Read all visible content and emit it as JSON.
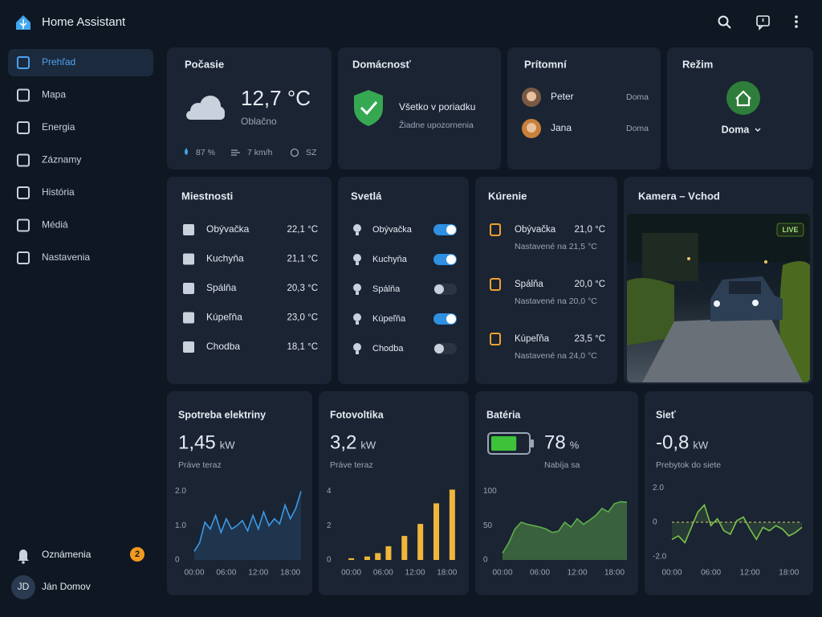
{
  "app": {
    "title": "Home Assistant"
  },
  "sidebar": {
    "items": [
      "Prehľad",
      "Mapa",
      "Energia",
      "Záznamy",
      "História",
      "Médiá",
      "Nastavenia"
    ],
    "active": 0,
    "notifications": {
      "label": "Oznámenia",
      "count": 2
    },
    "user": {
      "initials": "JD",
      "name": "Ján Domov"
    }
  },
  "weather": {
    "title": "Počasie",
    "temperature": "12,7 °C",
    "condition": "Oblačno",
    "humidity": "87 %",
    "wind": "7 km/h",
    "direction": "SZ"
  },
  "household": {
    "title": "Domácnosť",
    "status": "Všetko v poriadku",
    "detail": "Žiadne upozornenia"
  },
  "presence": {
    "title": "Prítomní",
    "people": [
      {
        "name": "Peter",
        "state": "Doma"
      },
      {
        "name": "Jana",
        "state": "Doma"
      }
    ]
  },
  "mode": {
    "title": "Režim",
    "value": "Doma"
  },
  "rooms": {
    "title": "Miestnosti",
    "rows": [
      {
        "name": "Obývačka",
        "temperature": "22,1 °C"
      },
      {
        "name": "Kuchyňa",
        "temperature": "21,1 °C"
      },
      {
        "name": "Spálňa",
        "temperature": "20,3 °C"
      },
      {
        "name": "Kúpeľňa",
        "temperature": "23,0 °C"
      },
      {
        "name": "Chodba",
        "temperature": "18,1 °C"
      }
    ]
  },
  "lights": {
    "title": "Svetlá",
    "on_color": "#2f8fe0",
    "items": [
      {
        "name": "Obývačka",
        "on": true
      },
      {
        "name": "Kuchyňa",
        "on": true
      },
      {
        "name": "Spálňa",
        "on": false
      },
      {
        "name": "Kúpeľňa",
        "on": true
      },
      {
        "name": "Chodba",
        "on": false
      }
    ]
  },
  "heating": {
    "title": "Kúrenie",
    "zones": [
      {
        "name": "Obývačka",
        "current": "21,0 °C",
        "target": "Nastavené na 21,5 °C"
      },
      {
        "name": "Spálňa",
        "current": "20,0 °C",
        "target": "Nastavené na 20,0 °C"
      },
      {
        "name": "Kúpeľňa",
        "current": "23,5 °C",
        "target": "Nastavené na 24,0 °C"
      }
    ]
  },
  "camera": {
    "title": "Kamera – Vchod",
    "badge": "LIVE"
  },
  "chart_data": [
    {
      "type": "line",
      "title": "Spotreba elektriny",
      "value": "1,45",
      "unit": "kW",
      "caption": "Práve teraz",
      "color": "#3b9ae8",
      "x": [
        0,
        1,
        2,
        3,
        4,
        5,
        6,
        7,
        8,
        9,
        10,
        11,
        12,
        13,
        14,
        15,
        16,
        17,
        18,
        19,
        20
      ],
      "values": [
        0.25,
        0.5,
        1.1,
        0.9,
        1.3,
        0.8,
        1.2,
        0.9,
        1.0,
        1.15,
        0.85,
        1.3,
        0.9,
        1.4,
        1.0,
        1.2,
        1.05,
        1.6,
        1.2,
        1.5,
        2.0
      ],
      "xlim": [
        0,
        20
      ],
      "xticks": [
        {
          "value": 0,
          "label": "00:00"
        },
        {
          "value": 6,
          "label": "06:00"
        },
        {
          "value": 12,
          "label": "12:00"
        },
        {
          "value": 18,
          "label": "18:00"
        }
      ],
      "ylim": [
        0,
        2.2
      ],
      "yticks": [
        0,
        {
          "value": 1,
          "label": "1.0"
        },
        {
          "value": 2,
          "label": "2.0"
        }
      ]
    },
    {
      "type": "bar",
      "title": "Fotovoltika",
      "value": "3,2",
      "unit": "kW",
      "caption": "Práve teraz",
      "color": "#f0b63a",
      "x": [
        0,
        3,
        5,
        7,
        10,
        13,
        16,
        19
      ],
      "values": [
        0.1,
        0.2,
        0.4,
        0.8,
        1.4,
        2.1,
        3.3,
        4.1
      ],
      "xlim": [
        -1,
        20
      ],
      "xticks": [
        {
          "value": 0,
          "label": "00:00"
        },
        {
          "value": 6,
          "label": "06:00"
        },
        {
          "value": 12,
          "label": "12:00"
        },
        {
          "value": 18,
          "label": "18:00"
        }
      ],
      "ylim": [
        0,
        4.4
      ],
      "yticks": [
        0,
        2,
        4
      ]
    },
    {
      "type": "area",
      "title": "Batéria",
      "value": 78,
      "unit": "%",
      "caption": "Nabíja sa",
      "color": "#5fae4a",
      "x": [
        0,
        1,
        2,
        3,
        4,
        5,
        6,
        7,
        8,
        9,
        10,
        11,
        12,
        13,
        14,
        15,
        16,
        17,
        18,
        19,
        20
      ],
      "values": [
        10,
        25,
        45,
        55,
        52,
        50,
        48,
        45,
        40,
        42,
        55,
        48,
        60,
        52,
        58,
        65,
        75,
        70,
        82,
        85,
        84
      ],
      "xlim": [
        0,
        20
      ],
      "xticks": [
        {
          "value": 0,
          "label": "00:00"
        },
        {
          "value": 6,
          "label": "06:00"
        },
        {
          "value": 12,
          "label": "12:00"
        },
        {
          "value": 18,
          "label": "18:00"
        }
      ],
      "ylim": [
        0,
        110
      ],
      "yticks": [
        0,
        50,
        100
      ]
    },
    {
      "type": "line",
      "title": "Sieť",
      "value": "-0,8",
      "unit": "kW",
      "caption": "Prebytok do siete",
      "color": "#7cc24a",
      "reference_line": true,
      "x": [
        0,
        1,
        2,
        3,
        4,
        5,
        6,
        7,
        8,
        9,
        10,
        11,
        12,
        13,
        14,
        15,
        16,
        17,
        18,
        19,
        20
      ],
      "values": [
        -1.0,
        -0.8,
        -1.2,
        -0.3,
        0.6,
        1.0,
        -0.2,
        0.2,
        -0.5,
        -0.7,
        0.1,
        0.3,
        -0.4,
        -1.0,
        -0.3,
        -0.5,
        -0.2,
        -0.4,
        -0.8,
        -0.6,
        -0.3
      ],
      "xlim": [
        0,
        20
      ],
      "xticks": [
        {
          "value": 0,
          "label": "00:00"
        },
        {
          "value": 6,
          "label": "06:00"
        },
        {
          "value": 12,
          "label": "12:00"
        },
        {
          "value": 18,
          "label": "18:00"
        }
      ],
      "ylim": [
        -2.2,
        2.2
      ],
      "yticks": [
        {
          "value": 2,
          "label": "2.0"
        },
        0,
        {
          "value": -2,
          "label": "-2.0"
        }
      ]
    }
  ]
}
